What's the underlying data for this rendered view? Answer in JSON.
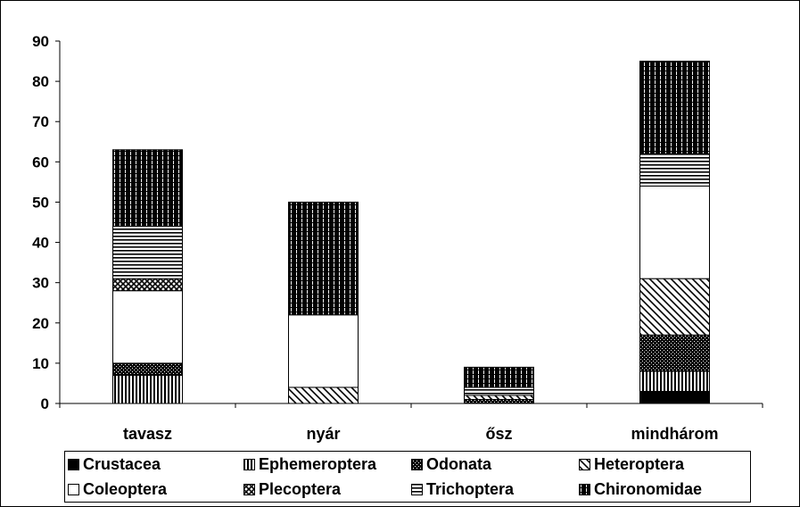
{
  "chart_data": {
    "type": "bar",
    "stacked": true,
    "categories": [
      "tavasz",
      "nyár",
      "ősz",
      "mindhárom"
    ],
    "ylim": [
      0,
      90
    ],
    "yticks": [
      0,
      10,
      20,
      30,
      40,
      50,
      60,
      70,
      80,
      90
    ],
    "title": "",
    "xlabel": "",
    "ylabel": "",
    "grid": false,
    "legend_position": "bottom",
    "series": [
      {
        "name": "Crustacea",
        "values": [
          0,
          0,
          0,
          3
        ],
        "pattern": "solid",
        "color": "#000000"
      },
      {
        "name": "Ephemeroptera",
        "values": [
          7,
          0,
          0,
          5
        ],
        "pattern": "vertical",
        "color": "#000000"
      },
      {
        "name": "Odonata",
        "values": [
          3,
          0,
          1,
          9
        ],
        "pattern": "dense",
        "color": "#000000"
      },
      {
        "name": "Heteroptera",
        "values": [
          0,
          4,
          1,
          14
        ],
        "pattern": "diagonal",
        "color": "#000000"
      },
      {
        "name": "Coleoptera",
        "values": [
          18,
          18,
          0,
          23
        ],
        "pattern": "white",
        "color": "#ffffff"
      },
      {
        "name": "Plecoptera",
        "values": [
          3,
          0,
          0,
          0
        ],
        "pattern": "cross",
        "color": "#000000"
      },
      {
        "name": "Trichoptera",
        "values": [
          13,
          0,
          2,
          8
        ],
        "pattern": "horizontal",
        "color": "#000000"
      },
      {
        "name": "Chironomidae",
        "values": [
          19,
          28,
          5,
          23
        ],
        "pattern": "brick",
        "color": "#000000"
      }
    ]
  }
}
